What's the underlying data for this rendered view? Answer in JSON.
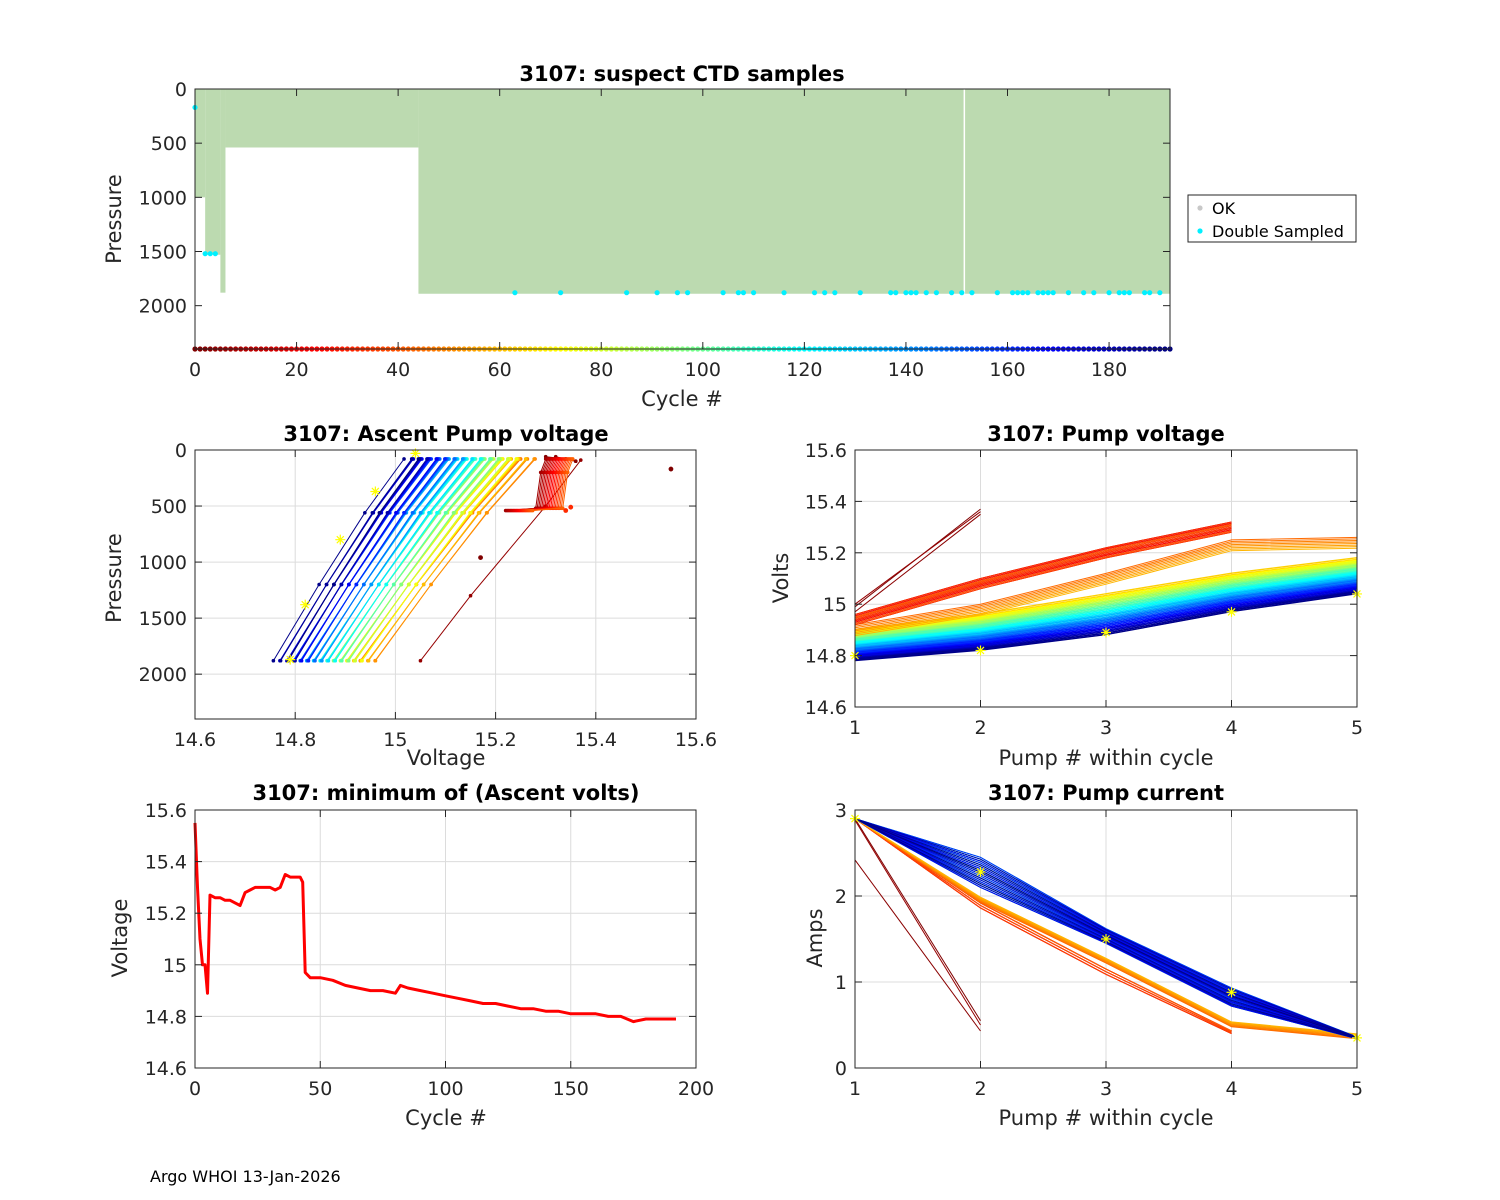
{
  "footer": "Argo WHOI 13-Jan-2026",
  "colors": {
    "ok_fill": "#bcdab0",
    "ok_marker": "#c8c8c8",
    "double_sampled": "#00f0ff",
    "min_line": "#ff0000",
    "marker_star": "#ffff00"
  },
  "chart_data": [
    {
      "id": "suspect",
      "type": "scatter",
      "title": "3107: suspect CTD samples",
      "xlabel": "Cycle #",
      "ylabel": "Pressure",
      "xlim": [
        0,
        192
      ],
      "ylim": [
        2400,
        0
      ],
      "y_reversed": true,
      "xticks": [
        0,
        20,
        40,
        60,
        80,
        100,
        120,
        140,
        160,
        180
      ],
      "yticks": [
        0,
        500,
        1000,
        1500,
        2000
      ],
      "legend": {
        "placement": "outside-right",
        "entries": [
          "OK",
          "Double Sampled"
        ]
      },
      "ok_profiles": [
        {
          "x0": 0,
          "x1": 2,
          "depth": 1000
        },
        {
          "x0": 2,
          "x1": 5,
          "depth": 1530
        },
        {
          "x0": 5,
          "x1": 6,
          "depth": 1880
        },
        {
          "x0": 6,
          "x1": 44,
          "depth": 540
        },
        {
          "x0": 44,
          "x1": 192,
          "depth": 1890
        }
      ],
      "double_sampled": [
        [
          0,
          170
        ],
        [
          2,
          1520
        ],
        [
          3,
          1520
        ],
        [
          4,
          1520
        ],
        [
          63,
          1880
        ],
        [
          72,
          1880
        ],
        [
          85,
          1880
        ],
        [
          91,
          1880
        ],
        [
          95,
          1880
        ],
        [
          97,
          1880
        ],
        [
          104,
          1880
        ],
        [
          107,
          1880
        ],
        [
          108,
          1880
        ],
        [
          110,
          1880
        ],
        [
          116,
          1880
        ],
        [
          122,
          1880
        ],
        [
          124,
          1880
        ],
        [
          126,
          1880
        ],
        [
          131,
          1880
        ],
        [
          137,
          1880
        ],
        [
          138,
          1880
        ],
        [
          140,
          1880
        ],
        [
          141,
          1880
        ],
        [
          142,
          1880
        ],
        [
          144,
          1880
        ],
        [
          146,
          1880
        ],
        [
          149,
          1880
        ],
        [
          151,
          1880
        ],
        [
          153,
          1880
        ],
        [
          158,
          1880
        ],
        [
          161,
          1880
        ],
        [
          162,
          1880
        ],
        [
          163,
          1880
        ],
        [
          164,
          1880
        ],
        [
          166,
          1880
        ],
        [
          167,
          1880
        ],
        [
          168,
          1880
        ],
        [
          169,
          1880
        ],
        [
          172,
          1880
        ],
        [
          175,
          1880
        ],
        [
          177,
          1880
        ],
        [
          180,
          1880
        ],
        [
          182,
          1880
        ],
        [
          183,
          1880
        ],
        [
          184,
          1880
        ],
        [
          187,
          1880
        ],
        [
          188,
          1880
        ],
        [
          190,
          1880
        ]
      ],
      "cycle_color_strip_pressure": 2400
    },
    {
      "id": "ascent",
      "type": "line",
      "title": "3107: Ascent Pump voltage",
      "xlabel": "Voltage",
      "ylabel": "Pressure",
      "xlim": [
        14.6,
        15.6
      ],
      "ylim": [
        2400,
        0
      ],
      "y_reversed": true,
      "xticks": [
        14.6,
        14.8,
        15,
        15.2,
        15.4,
        15.6
      ],
      "xtick_labels": [
        "14.6",
        "14.8",
        "15",
        "15.2",
        "15.4",
        "15.6"
      ],
      "yticks": [
        0,
        500,
        1000,
        1500,
        2000
      ],
      "profiles_from_cycle_colormap": true,
      "deep_start_voltage": {
        "cycle_40": 14.96,
        "cycle_45": 14.95,
        "cycle_190": 14.77
      },
      "shallow_end_voltage": {
        "cycle_40": 15.28,
        "cycle_45": 15.27,
        "cycle_190": 15.03
      },
      "star_markers": [
        [
          15.04,
          30
        ],
        [
          14.96,
          370
        ],
        [
          14.89,
          800
        ],
        [
          14.82,
          1380
        ],
        [
          14.79,
          1870
        ]
      ],
      "outlier_points": [
        [
          15.55,
          170
        ],
        [
          15.17,
          960
        ],
        [
          15.35,
          510
        ],
        [
          15.34,
          540
        ]
      ]
    },
    {
      "id": "pump_voltage",
      "type": "line",
      "title": "3107: Pump voltage",
      "xlabel": "Pump # within cycle",
      "ylabel": "Volts",
      "xlim": [
        1,
        5
      ],
      "ylim": [
        14.6,
        15.6
      ],
      "xticks": [
        1,
        2,
        3,
        4,
        5
      ],
      "yticks": [
        14.6,
        14.8,
        15,
        15.2,
        15.4,
        15.6
      ],
      "ytick_labels": [
        "14.6",
        "14.8",
        "15",
        "15.2",
        "15.4",
        "15.6"
      ],
      "series_early": {
        "cycles": "0-5",
        "values": [
          [
            14.99,
            15.37
          ],
          [
            14.97,
            15.35
          ],
          [
            15.0,
            15.36
          ]
        ]
      },
      "series_orange": {
        "cycles": "6-44",
        "pump1": 14.94,
        "pump2": 15.08,
        "pump3": 15.2,
        "pump4": 15.3
      },
      "series_yellow": {
        "cycles": "44-60",
        "values": [
          14.92,
          15.0,
          15.12,
          15.25,
          15.26
        ]
      },
      "series_blue": {
        "cycles": "60-192",
        "first": [
          14.9,
          14.96,
          15.04,
          15.12,
          15.18
        ],
        "last": [
          14.78,
          14.82,
          14.88,
          14.97,
          15.04
        ]
      },
      "star_markers": [
        [
          1,
          14.8
        ],
        [
          2,
          14.82
        ],
        [
          3,
          14.89
        ],
        [
          4,
          14.97
        ],
        [
          5,
          15.04
        ]
      ]
    },
    {
      "id": "min_volts",
      "type": "line",
      "title": "3107: minimum of (Ascent volts)",
      "xlabel": "Cycle #",
      "ylabel": "Voltage",
      "xlim": [
        0,
        200
      ],
      "ylim": [
        14.6,
        15.6
      ],
      "xticks": [
        0,
        50,
        100,
        150,
        200
      ],
      "yticks": [
        14.6,
        14.8,
        15,
        15.2,
        15.4,
        15.6
      ],
      "ytick_labels": [
        "14.6",
        "14.8",
        "15",
        "15.2",
        "15.4",
        "15.6"
      ],
      "series": [
        {
          "name": "minimum ascent volts",
          "x": [
            0,
            1,
            2,
            3,
            4,
            5,
            6,
            8,
            10,
            12,
            14,
            16,
            18,
            20,
            22,
            24,
            26,
            28,
            30,
            32,
            34,
            36,
            38,
            40,
            42,
            43,
            44,
            46,
            48,
            50,
            55,
            60,
            65,
            70,
            75,
            80,
            82,
            85,
            90,
            95,
            100,
            105,
            110,
            115,
            120,
            125,
            130,
            135,
            140,
            145,
            150,
            155,
            160,
            165,
            170,
            175,
            180,
            185,
            190,
            192
          ],
          "y": [
            15.55,
            15.3,
            15.1,
            15.0,
            15.0,
            14.89,
            15.27,
            15.26,
            15.26,
            15.25,
            15.25,
            15.24,
            15.23,
            15.28,
            15.29,
            15.3,
            15.3,
            15.3,
            15.3,
            15.29,
            15.3,
            15.35,
            15.34,
            15.34,
            15.34,
            15.32,
            14.97,
            14.95,
            14.95,
            14.95,
            14.94,
            14.92,
            14.91,
            14.9,
            14.9,
            14.89,
            14.92,
            14.91,
            14.9,
            14.89,
            14.88,
            14.87,
            14.86,
            14.85,
            14.85,
            14.84,
            14.83,
            14.83,
            14.82,
            14.82,
            14.81,
            14.81,
            14.81,
            14.8,
            14.8,
            14.78,
            14.79,
            14.79,
            14.79,
            14.79
          ]
        }
      ]
    },
    {
      "id": "pump_current",
      "type": "line",
      "title": "3107: Pump current",
      "xlabel": "Pump # within cycle",
      "ylabel": "Amps",
      "xlim": [
        1,
        5
      ],
      "ylim": [
        0,
        3
      ],
      "xticks": [
        1,
        2,
        3,
        4,
        5
      ],
      "yticks": [
        0,
        1,
        2,
        3
      ],
      "series_early": {
        "cycles": "0-5",
        "values": [
          [
            2.9,
            0.55
          ],
          [
            2.42,
            0.43
          ],
          [
            2.88,
            0.5
          ]
        ]
      },
      "series_orange": {
        "cycles": "6-44",
        "pump1": 2.9,
        "pump2": 1.9,
        "pump3": 1.13,
        "pump4": 0.42
      },
      "series_yellow": {
        "cycles": "44-60",
        "values": [
          2.9,
          1.93,
          1.22,
          0.48,
          0.34
        ]
      },
      "series_blue": {
        "cycles": "60-192",
        "values_range": [
          [
            2.9,
            2.9
          ],
          [
            2.1,
            2.45
          ],
          [
            1.45,
            1.62
          ],
          [
            0.72,
            0.93
          ],
          [
            0.34,
            0.36
          ]
        ]
      },
      "star_markers": [
        [
          1,
          2.9
        ],
        [
          2,
          2.28
        ],
        [
          3,
          1.5
        ],
        [
          4,
          0.88
        ],
        [
          5,
          0.35
        ]
      ]
    }
  ]
}
